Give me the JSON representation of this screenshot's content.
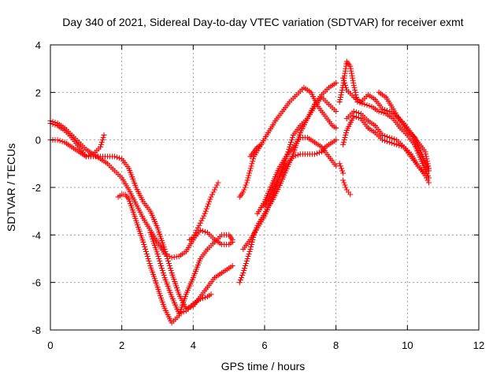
{
  "chart_data": {
    "type": "scatter",
    "title": "Day 340 of 2021, Sidereal Day-to-day VTEC variation (SDTVAR) for receiver exmt",
    "xlabel": "GPS time / hours",
    "ylabel": "SDTVAR / TECUs",
    "xlim": [
      0,
      12
    ],
    "ylim": [
      -8,
      4
    ],
    "xticks": [
      "0",
      "2",
      "4",
      "6",
      "8",
      "10",
      "12"
    ],
    "yticks": [
      "-8",
      "-6",
      "-4",
      "-2",
      "0",
      "2",
      "4"
    ],
    "grid": true,
    "marker": "+",
    "color": "#ff0000",
    "series": [
      {
        "x": [
          0.0,
          0.2,
          0.4,
          0.6,
          0.8,
          1.0,
          1.2,
          1.4,
          1.6,
          1.8,
          2.0,
          2.2,
          2.4,
          2.6,
          2.8,
          3.0,
          3.2,
          3.4,
          3.6,
          3.8,
          4.0,
          4.2,
          4.4,
          4.6,
          4.8,
          5.0,
          5.1
        ],
        "y": [
          0.8,
          0.7,
          0.5,
          0.2,
          -0.1,
          -0.4,
          -0.6,
          -0.8,
          -1.0,
          -1.3,
          -1.6,
          -2.1,
          -2.7,
          -3.3,
          -3.8,
          -4.3,
          -4.8,
          -4.95,
          -4.9,
          -4.7,
          -4.2,
          -3.8,
          -3.9,
          -4.2,
          -4.4,
          -4.4,
          -4.3
        ]
      },
      {
        "x": [
          0.0,
          0.2,
          0.4,
          0.6,
          0.8,
          1.0,
          1.2,
          1.4,
          1.5
        ],
        "y": [
          0.7,
          0.6,
          0.4,
          0.1,
          -0.3,
          -0.7,
          -0.6,
          -0.3,
          0.2
        ]
      },
      {
        "x": [
          0.0,
          0.2,
          0.4,
          0.6,
          0.8,
          1.0,
          1.2,
          1.4,
          1.6,
          1.8,
          2.0,
          2.2,
          2.4,
          2.6,
          2.8,
          3.0,
          3.2,
          3.4,
          3.6,
          3.8,
          4.0,
          4.2,
          4.4,
          4.6,
          4.8,
          5.0,
          5.1
        ],
        "y": [
          0.0,
          0.0,
          -0.1,
          -0.3,
          -0.5,
          -0.7,
          -0.7,
          -0.7,
          -0.7,
          -0.7,
          -0.8,
          -1.2,
          -2.0,
          -2.6,
          -3.0,
          -3.7,
          -4.6,
          -5.6,
          -6.5,
          -7.1,
          -7.0,
          -6.6,
          -6.2,
          -5.8,
          -5.6,
          -5.4,
          -5.3
        ]
      },
      {
        "x": [
          1.9,
          2.0,
          2.1,
          2.2,
          2.4,
          2.6,
          2.8,
          3.0,
          3.2,
          3.4,
          3.6,
          3.8,
          4.0,
          4.2,
          4.4,
          4.6,
          4.8,
          5.0,
          5.1
        ],
        "y": [
          -2.4,
          -2.3,
          -2.3,
          -2.5,
          -3.4,
          -4.3,
          -5.3,
          -6.2,
          -7.1,
          -7.7,
          -7.4,
          -6.5,
          -5.8,
          -5.0,
          -4.6,
          -4.3,
          -4.0,
          -4.0,
          -4.2
        ]
      },
      {
        "x": [
          2.8,
          3.0,
          3.2,
          3.4,
          3.6,
          3.8,
          4.0,
          4.2,
          4.4,
          4.5
        ],
        "y": [
          -3.9,
          -4.8,
          -5.8,
          -6.6,
          -7.3,
          -7.2,
          -6.9,
          -6.7,
          -6.6,
          -6.5
        ]
      },
      {
        "x": [
          3.9,
          4.0,
          4.1,
          4.2,
          4.3,
          4.4,
          4.5,
          4.6,
          4.7
        ],
        "y": [
          -4.2,
          -4.1,
          -3.8,
          -3.5,
          -3.2,
          -2.8,
          -2.4,
          -2.1,
          -1.8
        ]
      },
      {
        "x": [
          5.3,
          5.4,
          5.5,
          5.6,
          5.7,
          5.8,
          6.0,
          6.2,
          6.4,
          6.6,
          6.8,
          7.0,
          7.2,
          7.4,
          7.6,
          7.8,
          8.0
        ],
        "y": [
          -6.0,
          -5.6,
          -5.1,
          -4.6,
          -4.0,
          -3.6,
          -3.1,
          -2.6,
          -2.0,
          -1.3,
          -0.6,
          0.3,
          0.9,
          1.5,
          1.9,
          2.2,
          2.4
        ]
      },
      {
        "x": [
          5.4,
          5.6,
          5.8,
          6.0,
          6.2,
          6.4,
          6.6,
          6.8,
          7.0,
          7.2,
          7.4,
          7.6,
          7.8,
          8.0
        ],
        "y": [
          -4.6,
          -4.2,
          -3.7,
          -3.2,
          -2.5,
          -1.6,
          -0.8,
          0.2,
          0.6,
          0.9,
          1.4,
          1.8,
          1.5,
          1.2
        ]
      },
      {
        "x": [
          5.3,
          5.4,
          5.5,
          5.7,
          5.9,
          6.1,
          6.3,
          6.5,
          6.7,
          6.9,
          7.1,
          7.3,
          7.5,
          7.7,
          7.9,
          8.0
        ],
        "y": [
          -2.4,
          -2.2,
          -1.8,
          -0.7,
          -0.2,
          0.3,
          0.8,
          1.2,
          1.6,
          1.9,
          2.2,
          2.0,
          1.4,
          1.0,
          0.6,
          0.5
        ]
      },
      {
        "x": [
          5.6,
          5.7,
          5.8,
          5.9
        ],
        "y": [
          -0.7,
          -0.5,
          -0.3,
          -0.2
        ]
      },
      {
        "x": [
          5.8,
          6.0,
          6.2,
          6.4,
          6.6,
          6.8,
          7.0,
          7.2,
          7.4,
          7.6,
          7.8,
          8.0
        ],
        "y": [
          -3.1,
          -2.6,
          -1.9,
          -1.2,
          -0.7,
          -0.3,
          0.1,
          0.1,
          -0.1,
          -0.3,
          -0.7,
          -1.1
        ]
      },
      {
        "x": [
          6.0,
          6.2,
          6.4,
          6.6,
          6.8,
          7.0,
          7.2,
          7.4,
          7.6,
          7.7,
          7.9,
          8.0
        ],
        "y": [
          -2.8,
          -2.2,
          -1.6,
          -1.1,
          -0.7,
          -0.6,
          -0.6,
          -0.6,
          -0.5,
          -0.3,
          -0.1,
          0.0
        ]
      },
      {
        "x": [
          8.1,
          8.2,
          8.3,
          8.4,
          8.5,
          8.6,
          8.8,
          9.0,
          9.2,
          9.4,
          9.6,
          9.8,
          10.0,
          10.2,
          10.4,
          10.6
        ],
        "y": [
          1.6,
          2.3,
          3.3,
          3.1,
          2.3,
          1.6,
          1.5,
          1.4,
          1.2,
          1.1,
          0.9,
          0.5,
          0.2,
          -0.2,
          -0.9,
          -1.6
        ]
      },
      {
        "x": [
          8.2,
          8.3,
          8.5,
          8.7,
          8.9,
          9.1,
          9.3,
          9.5,
          9.7,
          9.9,
          10.1,
          10.3,
          10.5,
          10.6
        ],
        "y": [
          2.6,
          2.1,
          1.8,
          1.6,
          1.9,
          1.7,
          1.3,
          1.2,
          1.0,
          0.7,
          0.3,
          -0.1,
          -0.5,
          -1.2
        ]
      },
      {
        "x": [
          8.2,
          8.3,
          8.5,
          8.7,
          8.9,
          9.1,
          9.3,
          9.5,
          9.7,
          9.9,
          10.1,
          10.3,
          10.5,
          10.6
        ],
        "y": [
          -0.2,
          0.4,
          1.0,
          0.9,
          0.5,
          0.3,
          0.0,
          -0.1,
          -0.2,
          -0.3,
          -0.6,
          -1.1,
          -1.5,
          -1.8
        ]
      },
      {
        "x": [
          8.3,
          8.5,
          8.7,
          8.9,
          9.1,
          9.3,
          9.5,
          9.7,
          9.9,
          10.1,
          10.3,
          10.5
        ],
        "y": [
          0.9,
          1.2,
          1.1,
          0.8,
          0.6,
          0.2,
          0.1,
          0.0,
          -0.3,
          -0.7,
          -1.1,
          -1.4
        ]
      },
      {
        "x": [
          9.2,
          9.4,
          9.6,
          9.8,
          10.0,
          10.2,
          10.4,
          10.6
        ],
        "y": [
          2.0,
          1.8,
          1.3,
          0.8,
          0.4,
          0.1,
          -0.6,
          -1.3
        ]
      },
      {
        "x": [
          8.2,
          8.25,
          8.3,
          8.35,
          8.4
        ],
        "y": [
          -1.7,
          -1.9,
          -2.1,
          -2.2,
          -2.3
        ]
      },
      {
        "x": [
          8.1,
          8.15,
          8.2
        ],
        "y": [
          -1.0,
          -1.2,
          -1.4
        ]
      }
    ]
  }
}
